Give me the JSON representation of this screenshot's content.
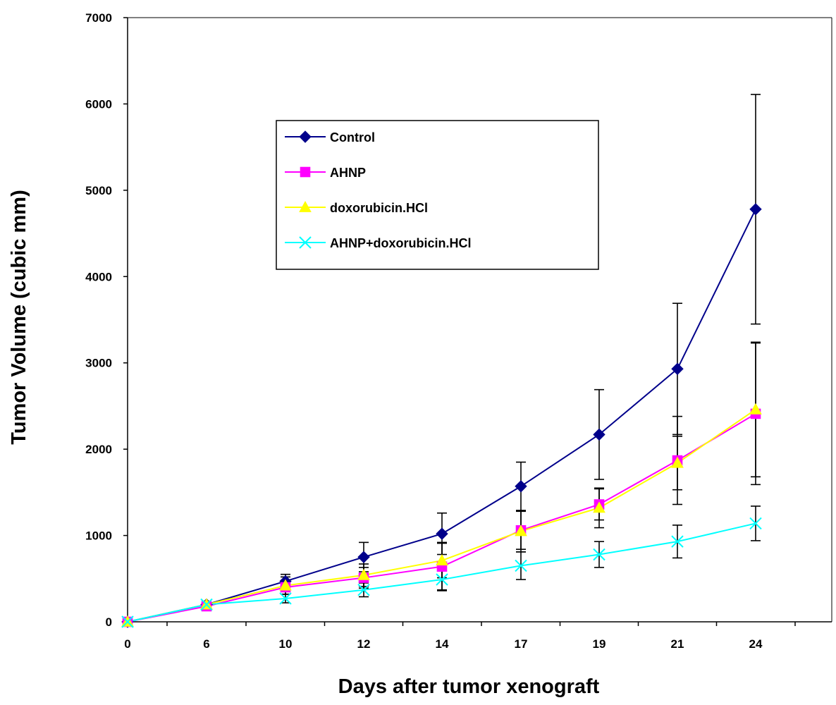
{
  "chart_data": {
    "type": "line",
    "xlabel": "Days after tumor xenograft",
    "ylabel": "Tumor Volume (cubic mm)",
    "ylim": [
      0,
      7000
    ],
    "yticks": [
      "0",
      "1000",
      "2000",
      "3000",
      "4000",
      "5000",
      "6000",
      "7000"
    ],
    "categories": [
      "0",
      "6",
      "10",
      "12",
      "14",
      "17",
      "19",
      "21",
      "24"
    ],
    "grid": false,
    "legend_position": "top-left",
    "series": [
      {
        "name": "Control",
        "color": "#00008b",
        "marker": "diamond",
        "values": [
          0,
          200,
          470,
          750,
          1020,
          1570,
          2170,
          2930,
          4780
        ],
        "error": [
          0,
          30,
          80,
          170,
          240,
          280,
          520,
          760,
          1330
        ]
      },
      {
        "name": "AHNP",
        "color": "#ff00ff",
        "marker": "square",
        "values": [
          0,
          180,
          400,
          510,
          640,
          1060,
          1360,
          1870,
          2410
        ],
        "error": [
          0,
          30,
          80,
          120,
          280,
          220,
          180,
          510,
          820
        ]
      },
      {
        "name": "doxorubicin.HCl",
        "color": "#ffff00",
        "marker": "triangle",
        "values": [
          0,
          200,
          420,
          540,
          710,
          1050,
          1320,
          1840,
          2460
        ],
        "error": [
          0,
          30,
          100,
          130,
          200,
          240,
          230,
          310,
          780
        ]
      },
      {
        "name": "AHNP+doxorubicin.HCl",
        "color": "#00ffff",
        "marker": "x",
        "values": [
          0,
          200,
          270,
          370,
          490,
          650,
          780,
          930,
          1140
        ],
        "error": [
          0,
          30,
          50,
          80,
          120,
          160,
          150,
          190,
          200
        ]
      }
    ]
  }
}
